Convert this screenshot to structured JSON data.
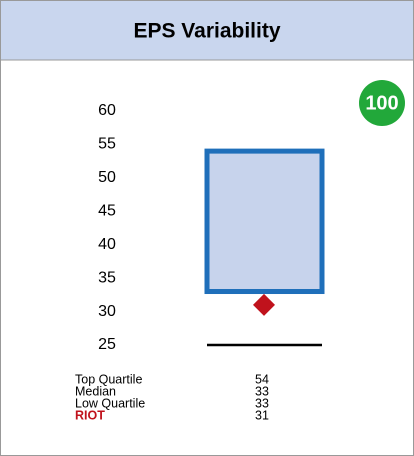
{
  "chart_data": {
    "type": "box",
    "title": "EPS Variability",
    "badge": "100",
    "ylim": [
      25,
      60
    ],
    "yticks": [
      25,
      30,
      35,
      40,
      45,
      50,
      55,
      60
    ],
    "box_color": "#1f6fba",
    "box_fill": "#c7d3ec",
    "stats": [
      {
        "label": "Top Quartile",
        "value": 54
      },
      {
        "label": "Median",
        "value": 33
      },
      {
        "label": "Low Quartile",
        "value": 33
      },
      {
        "label": "RIOT",
        "value": 31,
        "color": "#c0121c"
      }
    ],
    "low_line": 25
  }
}
